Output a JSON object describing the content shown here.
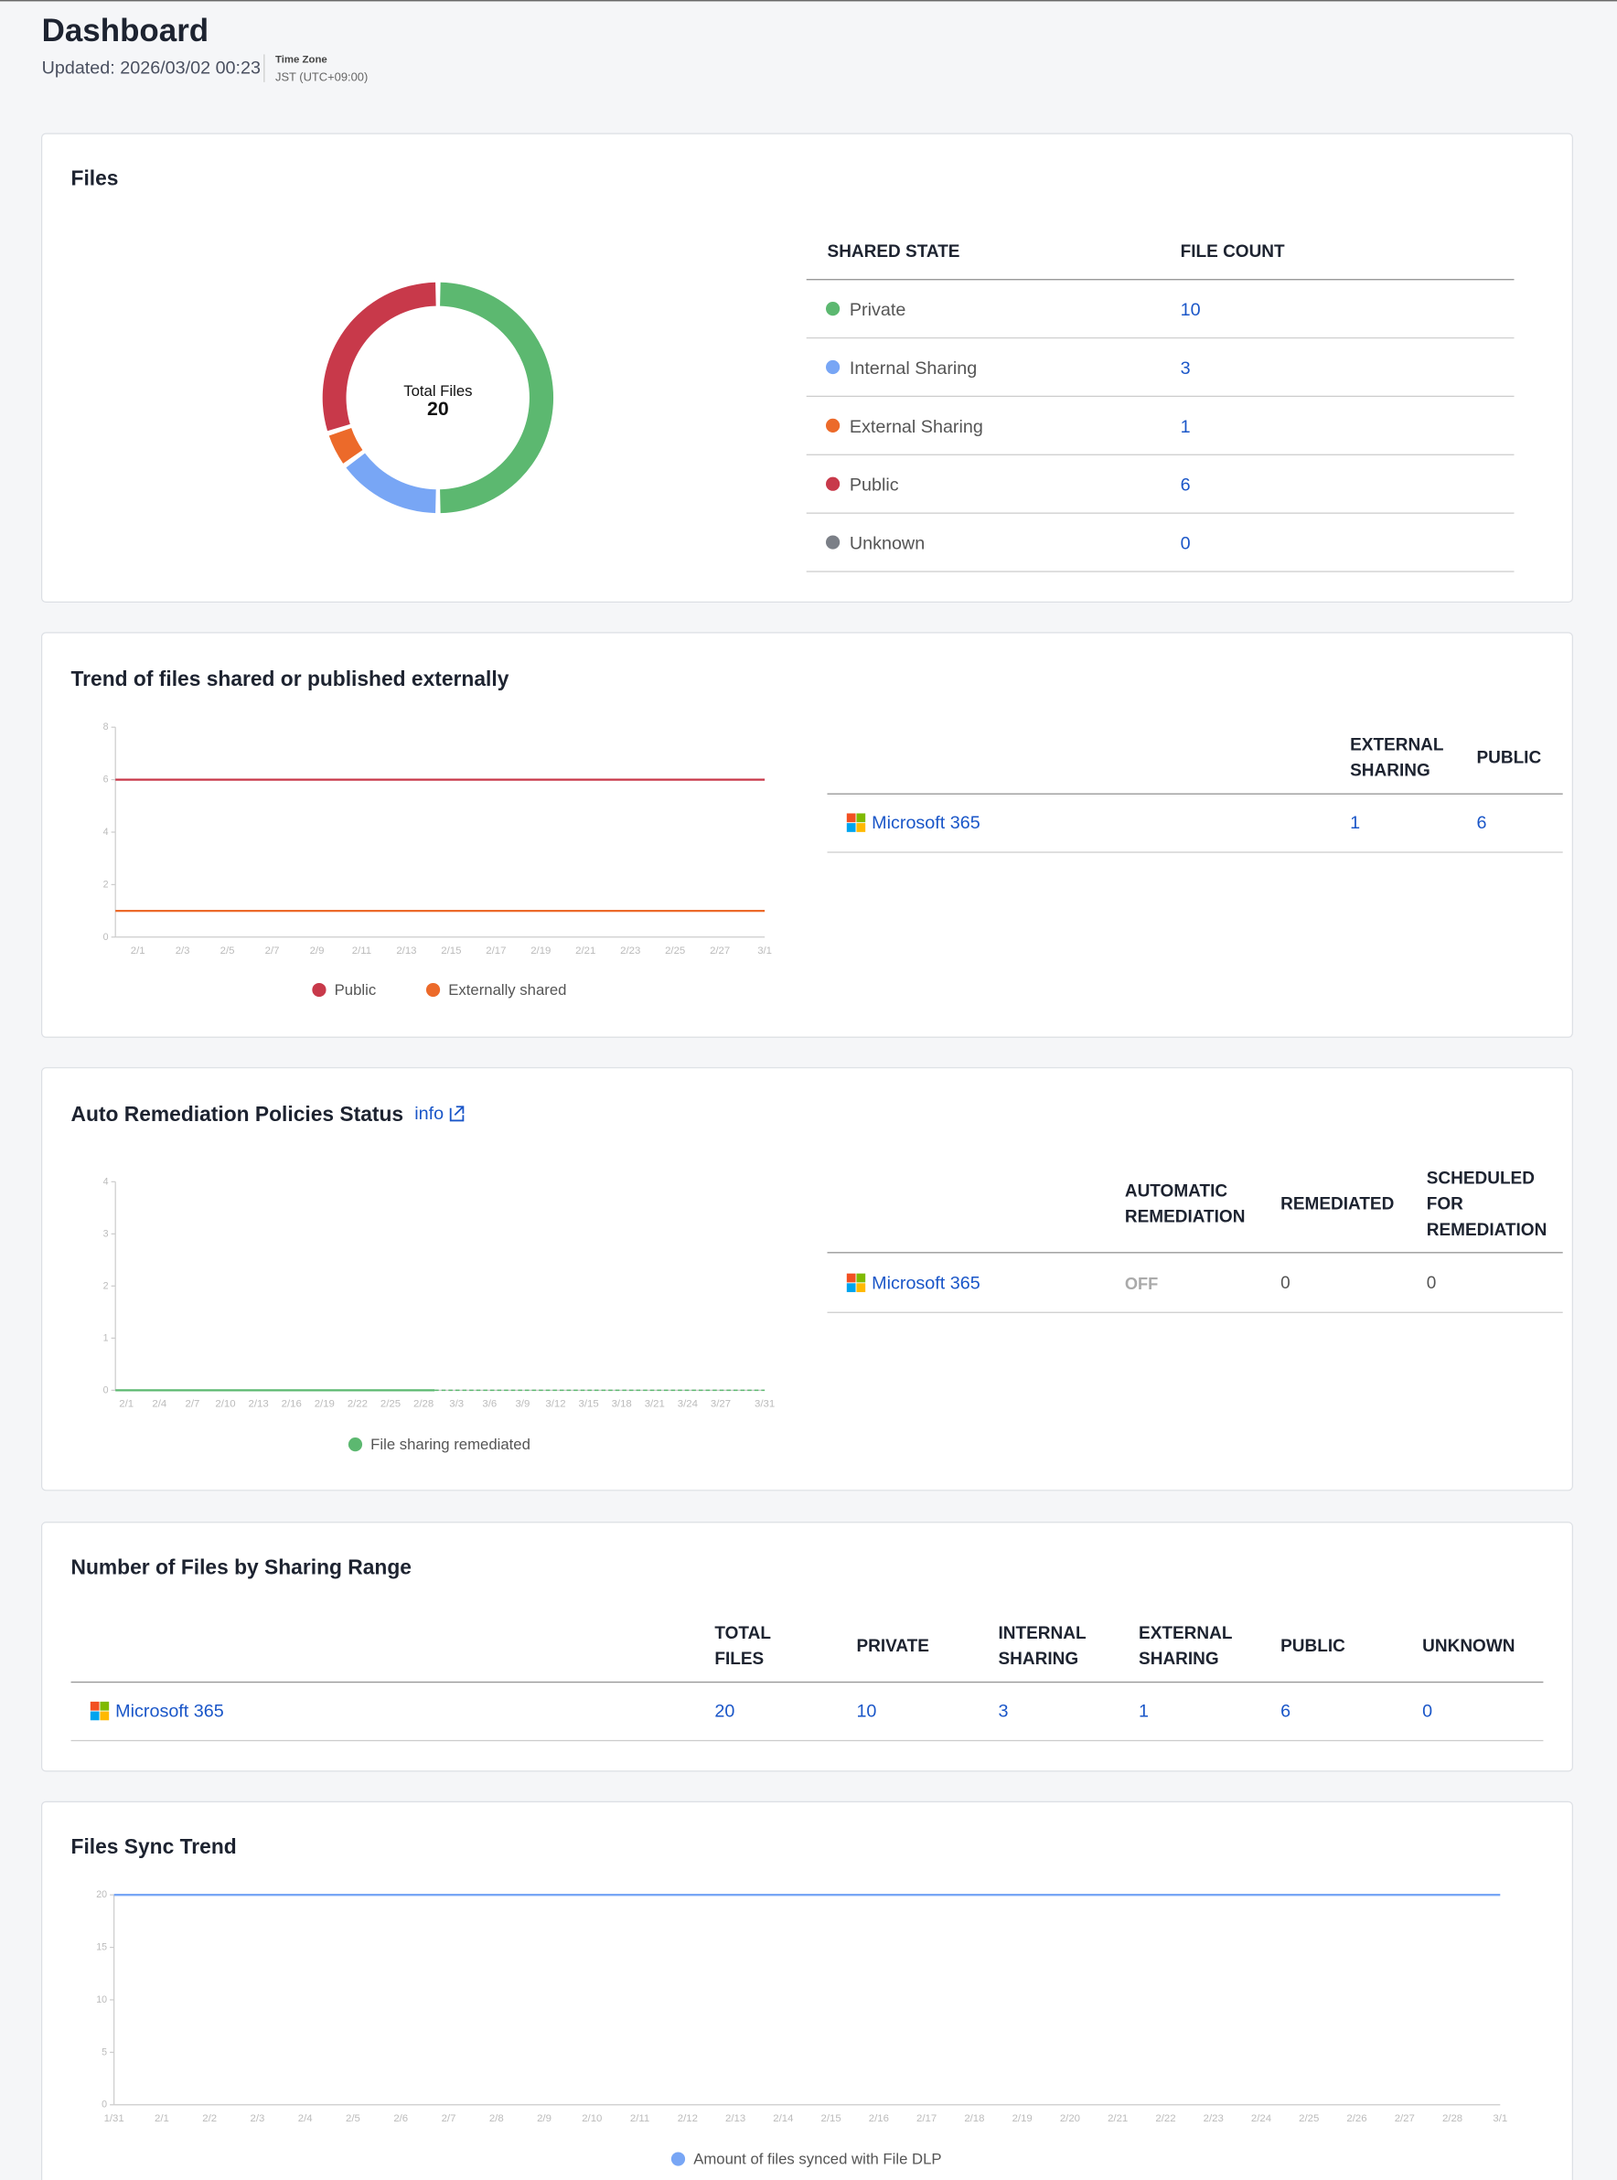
{
  "header": {
    "title": "Dashboard",
    "updated": "Updated: 2026/03/02 00:23",
    "timezone_label": "Time Zone",
    "timezone": "JST (UTC+09:00)"
  },
  "files": {
    "title": "Files",
    "chart_data": {
      "type": "donut",
      "center_label": "Total Files",
      "center_value": 20,
      "categories": [
        "Private",
        "Internal Sharing",
        "External Sharing",
        "Public",
        "Unknown"
      ],
      "values": [
        10,
        3,
        1,
        6,
        0
      ],
      "colors": [
        "#5cb870",
        "#78a6f5",
        "#ec6a2a",
        "#c8394a",
        "#7b7f87"
      ]
    },
    "table": {
      "headers": [
        "SHARED STATE",
        "FILE COUNT"
      ]
    }
  },
  "trend": {
    "title": "Trend of files shared or published externally",
    "chart_data": {
      "type": "line",
      "x": [
        null,
        "2/1",
        null,
        "2/3",
        null,
        "2/5",
        null,
        "2/7",
        null,
        "2/9",
        null,
        "2/11",
        null,
        "2/13",
        null,
        "2/15",
        null,
        "2/17",
        null,
        "2/19",
        null,
        "2/21",
        null,
        "2/23",
        null,
        "2/25",
        null,
        "2/27",
        null,
        "3/1"
      ],
      "ylim": [
        0,
        8
      ],
      "yticks": [
        0,
        2,
        4,
        6,
        8
      ],
      "series": [
        {
          "name": "Public",
          "color": "#c8394a",
          "values": [
            6,
            6,
            6,
            6,
            6,
            6,
            6,
            6,
            6,
            6,
            6,
            6,
            6,
            6,
            6,
            6,
            6,
            6,
            6,
            6,
            6,
            6,
            6,
            6,
            6,
            6,
            6,
            6,
            6,
            6
          ]
        },
        {
          "name": "Externally shared",
          "color": "#ec6a2a",
          "values": [
            1,
            1,
            1,
            1,
            1,
            1,
            1,
            1,
            1,
            1,
            1,
            1,
            1,
            1,
            1,
            1,
            1,
            1,
            1,
            1,
            1,
            1,
            1,
            1,
            1,
            1,
            1,
            1,
            1,
            1
          ]
        }
      ]
    },
    "table": {
      "headers": [
        "EXTERNAL SHARING",
        "PUBLIC"
      ],
      "rows": [
        {
          "service": "Microsoft 365",
          "cells": [
            1,
            6
          ]
        }
      ]
    }
  },
  "remediation": {
    "title": "Auto Remediation Policies Status",
    "info_link": "info",
    "chart_data": {
      "type": "line",
      "x": [
        null,
        "2/1",
        null,
        null,
        "2/4",
        null,
        null,
        "2/7",
        null,
        null,
        "2/10",
        null,
        null,
        "2/13",
        null,
        null,
        "2/16",
        null,
        null,
        "2/19",
        null,
        null,
        "2/22",
        null,
        null,
        "2/25",
        null,
        null,
        "2/28",
        null,
        null,
        "3/3",
        null,
        null,
        "3/6",
        null,
        null,
        "3/9",
        null,
        null,
        "3/12",
        null,
        null,
        "3/15",
        null,
        null,
        "3/18",
        null,
        null,
        "3/21",
        null,
        null,
        "3/24",
        null,
        null,
        "3/27",
        null,
        null,
        null,
        "3/31"
      ],
      "ylim": [
        0,
        4
      ],
      "yticks": [
        0,
        1,
        2,
        3,
        4
      ],
      "series": [
        {
          "name": "File sharing remediated",
          "color": "#5cb870",
          "values": [
            0,
            0,
            0,
            0,
            0,
            0,
            0,
            0,
            0,
            0,
            0,
            0,
            0,
            0,
            0,
            0,
            0,
            0,
            0,
            0,
            0,
            0,
            0,
            0,
            0,
            0,
            0,
            0,
            0,
            0,
            null,
            null,
            null,
            null,
            null,
            null,
            null,
            null,
            null,
            null,
            null,
            null,
            null,
            null,
            null,
            null,
            null,
            null,
            null,
            null,
            null,
            null,
            null,
            null,
            null,
            null,
            null,
            null,
            null,
            null
          ]
        }
      ]
    },
    "table": {
      "headers": [
        "AUTOMATIC REMEDIATION",
        "REMEDIATED",
        "SCHEDULED FOR REMEDIATION"
      ],
      "rows": [
        {
          "service": "Microsoft 365",
          "cells": [
            "OFF",
            0,
            0
          ]
        }
      ]
    }
  },
  "sharing_range": {
    "title": "Number of Files by Sharing Range",
    "table": {
      "headers": [
        "TOTAL FILES",
        "PRIVATE",
        "INTERNAL SHARING",
        "EXTERNAL SHARING",
        "PUBLIC",
        "UNKNOWN"
      ],
      "rows": [
        {
          "service": "Microsoft 365",
          "cells": [
            20,
            10,
            3,
            1,
            6,
            0
          ]
        }
      ]
    }
  },
  "sync": {
    "title": "Files Sync Trend",
    "chart_data": {
      "type": "line",
      "x": [
        "1/31",
        "2/1",
        "2/2",
        "2/3",
        "2/4",
        "2/5",
        "2/6",
        "2/7",
        "2/8",
        "2/9",
        "2/10",
        "2/11",
        "2/12",
        "2/13",
        "2/14",
        "2/15",
        "2/16",
        "2/17",
        "2/18",
        "2/19",
        "2/20",
        "2/21",
        "2/22",
        "2/23",
        "2/24",
        "2/25",
        "2/26",
        "2/27",
        "2/28",
        "3/1"
      ],
      "ylim": [
        0,
        20
      ],
      "yticks": [
        0,
        5,
        10,
        15,
        20
      ],
      "series": [
        {
          "name": "Amount of files synced with File DLP",
          "color": "#78a6f5",
          "values": [
            20,
            20,
            20,
            20,
            20,
            20,
            20,
            20,
            20,
            20,
            20,
            20,
            20,
            20,
            20,
            20,
            20,
            20,
            20,
            20,
            20,
            20,
            20,
            20,
            20,
            20,
            20,
            20,
            20,
            20
          ]
        }
      ]
    }
  }
}
